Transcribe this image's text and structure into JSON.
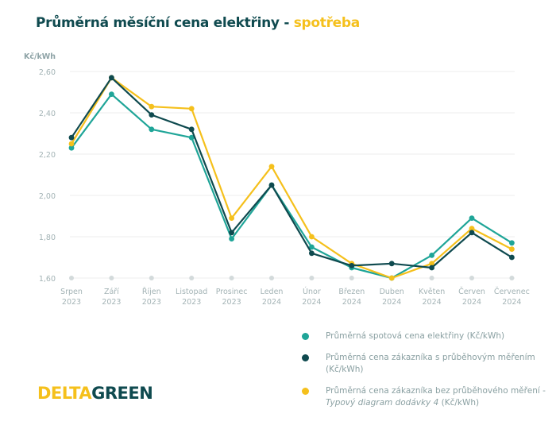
{
  "title": {
    "main": "Průměrná měsíční cena elektřiny - ",
    "accent": "spotřeba"
  },
  "chart_data": {
    "type": "line",
    "title": "Průměrná měsíční cena elektřiny - spotřeba",
    "ylabel": "Kč/kWh",
    "xlabel": "",
    "ylim": [
      1.6,
      2.6
    ],
    "yticks": [
      "1,60",
      "1,80",
      "2,00",
      "2,20",
      "2,40",
      "2,60"
    ],
    "ytick_values": [
      1.6,
      1.8,
      2.0,
      2.2,
      2.4,
      2.6
    ],
    "grid": true,
    "legend_position": "bottom-right",
    "categories": [
      [
        "Srpen",
        "2023"
      ],
      [
        "Září",
        "2023"
      ],
      [
        "Říjen",
        "2023"
      ],
      [
        "Listopad",
        "2023"
      ],
      [
        "Prosinec",
        "2023"
      ],
      [
        "Leden",
        "2024"
      ],
      [
        "Únor",
        "2024"
      ],
      [
        "Březen",
        "2024"
      ],
      [
        "Duben",
        "2024"
      ],
      [
        "Květen",
        "2024"
      ],
      [
        "Červen",
        "2024"
      ],
      [
        "Červenec",
        "2024"
      ]
    ],
    "series": [
      {
        "name": "Průměrná spotová cena elektřiny (Kč/kWh)",
        "color": "#1fa598",
        "values": [
          2.23,
          2.49,
          2.32,
          2.28,
          1.79,
          2.05,
          1.75,
          1.65,
          1.6,
          1.71,
          1.89,
          1.77
        ]
      },
      {
        "name": "Průměrná cena zákazníka s průběhovým měřením (Kč/kWh)",
        "color": "#0f4a4f",
        "values": [
          2.28,
          2.57,
          2.39,
          2.32,
          1.82,
          2.05,
          1.72,
          1.66,
          1.67,
          1.65,
          1.82,
          1.7
        ]
      },
      {
        "name": "Průměrná cena zákazníka bez průběhového měření - Typový diagram dodávky 4 (Kč/kWh)",
        "color": "#f5c01c",
        "values": [
          2.25,
          2.57,
          2.43,
          2.42,
          1.89,
          2.14,
          1.8,
          1.67,
          1.6,
          1.67,
          1.84,
          1.74
        ]
      }
    ]
  },
  "legend": [
    {
      "text": "Průměrná spotová cena elektřiny (Kč/kWh)",
      "color": "#1fa598"
    },
    {
      "text": "Průměrná cena zákazníka s průběhovým měřením (Kč/kWh)",
      "color": "#0f4a4f"
    },
    {
      "text_before": "Průměrná cena zákazníka bez průběhového měření - ",
      "text_italic": "Typový diagram dodávky 4",
      "text_after": " (Kč/kWh)",
      "color": "#f5c01c"
    }
  ],
  "logo": {
    "part1": "DELTA",
    "part2": "GREEN"
  }
}
